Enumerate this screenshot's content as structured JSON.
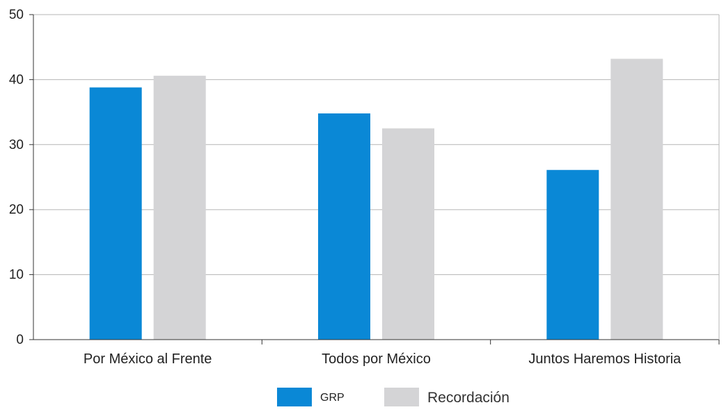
{
  "chart_data": {
    "type": "bar",
    "categories": [
      "Por México al Frente",
      "Todos por México",
      "Juntos Haremos Historia"
    ],
    "series": [
      {
        "name": "GRP",
        "values": [
          38.8,
          34.8,
          26.1
        ],
        "color": "#0a88d6"
      },
      {
        "name": "Recordación",
        "values": [
          40.6,
          32.5,
          43.2
        ],
        "color": "#d4d4d6"
      }
    ],
    "yticks": [
      0,
      10,
      20,
      30,
      40,
      50
    ],
    "ylim": [
      0,
      50
    ],
    "title": "",
    "xlabel": "",
    "ylabel": "",
    "grid": true,
    "legend_position": "bottom-center"
  }
}
